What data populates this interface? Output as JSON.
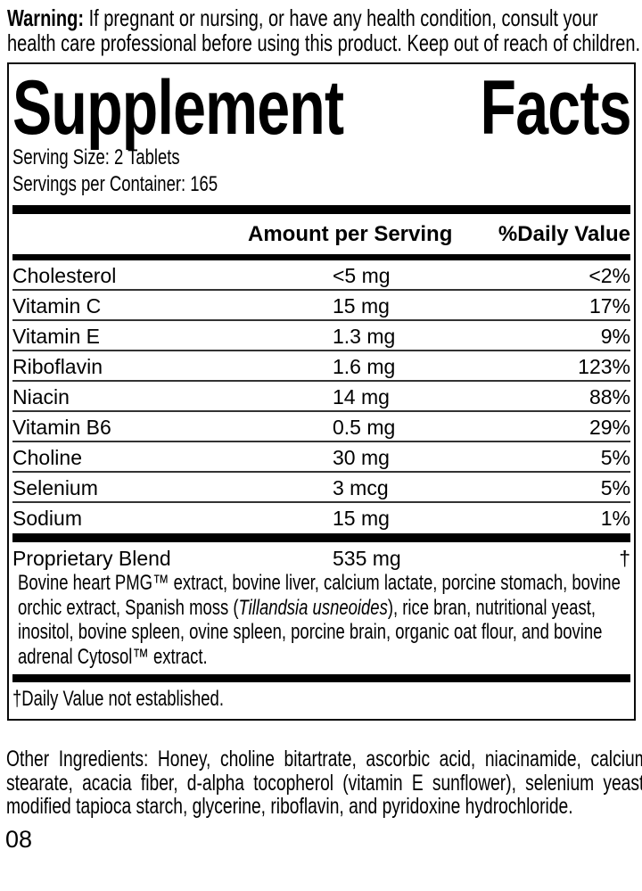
{
  "warning": {
    "label": "Warning:",
    "text": "If pregnant or nursing, or have any health condition, consult your health care professional before using this product. Keep out of reach of children."
  },
  "panel": {
    "title_words": [
      "Supplement",
      "Facts"
    ],
    "serving_size": "Serving Size: 2 Tablets",
    "servings_per_container": "Servings per Container: 165",
    "columns": {
      "amount": "Amount per Serving",
      "daily_value": "%Daily Value"
    },
    "rows": [
      {
        "name": "Cholesterol",
        "amount": "<5 mg",
        "dv": "<2%"
      },
      {
        "name": "Vitamin C",
        "amount": "15 mg",
        "dv": "17%"
      },
      {
        "name": "Vitamin E",
        "amount": "1.3 mg",
        "dv": "9%"
      },
      {
        "name": "Riboflavin",
        "amount": "1.6 mg",
        "dv": "123%"
      },
      {
        "name": "Niacin",
        "amount": "14 mg",
        "dv": "88%"
      },
      {
        "name": "Vitamin B6",
        "amount": "0.5 mg",
        "dv": "29%"
      },
      {
        "name": "Choline",
        "amount": "30 mg",
        "dv": "5%"
      },
      {
        "name": "Selenium",
        "amount": "3 mcg",
        "dv": "5%"
      },
      {
        "name": "Sodium",
        "amount": "15 mg",
        "dv": "1%"
      }
    ],
    "blend": {
      "name": "Proprietary Blend",
      "amount": "535 mg",
      "dv": "†",
      "description_pre": "Bovine heart PMG™ extract, bovine liver, calcium lactate, porcine stomach, bovine orchic extract, Spanish moss (",
      "description_italic": "Tillandsia usneoides",
      "description_post": "), rice bran, nutritional yeast, inositol, bovine spleen, ovine spleen, porcine brain, organic oat flour, and bovine adrenal Cytosol™ extract."
    },
    "footnote": "†Daily Value not established."
  },
  "other_ingredients": "Other Ingredients: Honey, choline bitartrate, ascorbic acid, niacinamide, calcium stearate, acacia fiber, d-alpha tocopherol (vitamin E sunflower), selenium yeast, modified tapioca starch, glycerine, riboflavin, and pyridoxine hydrochloride.",
  "page_number": "08",
  "colors": {
    "ink": "#000000",
    "background": "#ffffff",
    "separator": "#333333"
  }
}
